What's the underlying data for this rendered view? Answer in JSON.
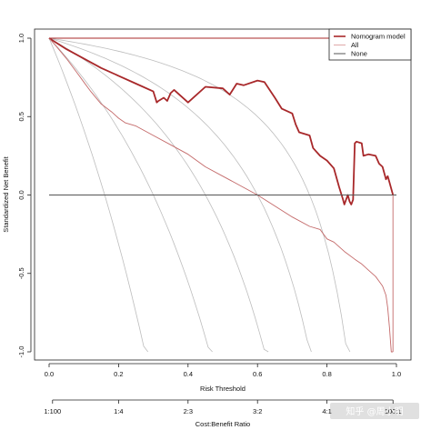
{
  "chart_data": {
    "type": "line",
    "xlabel": "Risk Threshold",
    "ylabel": "Standardized Net Benefit",
    "xlim": [
      0,
      1
    ],
    "ylim": [
      -1,
      1
    ],
    "x_ticks": [
      "0.0",
      "0.2",
      "0.4",
      "0.6",
      "0.8",
      "1.0"
    ],
    "x_tick_values": [
      0,
      0.2,
      0.4,
      0.6,
      0.8,
      1.0
    ],
    "y_ticks": [
      "-1.0",
      "-0.5",
      "0.0",
      "0.5",
      "1.0"
    ],
    "y_tick_values": [
      -1,
      -0.5,
      0,
      0.5,
      1
    ],
    "cost_benefit_label": "Cost:Benefit Ratio",
    "cost_benefit_ticks": [
      "1:100",
      "1:4",
      "2:3",
      "3:2",
      "4:1",
      "100:1"
    ],
    "cost_benefit_tick_values": [
      0.0099,
      0.2,
      0.4,
      0.6,
      0.8,
      0.9901
    ],
    "legend": {
      "position": "top-right",
      "entries": [
        {
          "label": "Nomogram model",
          "color": "#a8282a"
        },
        {
          "label": "All",
          "color": "#e0a8a8"
        },
        {
          "label": "None",
          "color": "#555555"
        }
      ]
    },
    "series": [
      {
        "name": "Nomogram model",
        "color": "#a8282a",
        "x": [
          0,
          0.05,
          0.1,
          0.15,
          0.2,
          0.25,
          0.3,
          0.31,
          0.315,
          0.33,
          0.34,
          0.35,
          0.36,
          0.4,
          0.45,
          0.5,
          0.52,
          0.54,
          0.56,
          0.6,
          0.62,
          0.65,
          0.67,
          0.7,
          0.71,
          0.72,
          0.75,
          0.76,
          0.78,
          0.8,
          0.82,
          0.835,
          0.845,
          0.85,
          0.855,
          0.86,
          0.865,
          0.87,
          0.875,
          0.88,
          0.885,
          0.9,
          0.905,
          0.92,
          0.94,
          0.95,
          0.96,
          0.97,
          0.975,
          0.98,
          0.985,
          0.99
        ],
        "y": [
          1.0,
          0.93,
          0.87,
          0.81,
          0.76,
          0.71,
          0.66,
          0.59,
          0.6,
          0.62,
          0.6,
          0.65,
          0.67,
          0.59,
          0.69,
          0.68,
          0.64,
          0.71,
          0.7,
          0.73,
          0.72,
          0.62,
          0.55,
          0.52,
          0.45,
          0.4,
          0.38,
          0.3,
          0.25,
          0.22,
          0.17,
          0.05,
          -0.02,
          -0.06,
          -0.03,
          0.0,
          -0.04,
          -0.06,
          -0.03,
          0.33,
          0.34,
          0.33,
          0.25,
          0.26,
          0.25,
          0.2,
          0.18,
          0.1,
          0.12,
          0.08,
          0.04,
          0.0
        ]
      },
      {
        "name": "All",
        "color": "#c46a6a",
        "x": [
          0,
          0.02,
          0.05,
          0.08,
          0.1,
          0.12,
          0.15,
          0.18,
          0.2,
          0.22,
          0.25,
          0.3,
          0.35,
          0.4,
          0.45,
          0.5,
          0.55,
          0.6,
          0.65,
          0.7,
          0.75,
          0.78,
          0.8,
          0.82,
          0.85,
          0.88,
          0.9,
          0.92,
          0.94,
          0.95,
          0.96,
          0.97,
          0.975,
          0.98,
          0.985,
          0.99
        ],
        "y": [
          1.0,
          0.95,
          0.87,
          0.78,
          0.72,
          0.66,
          0.58,
          0.53,
          0.49,
          0.46,
          0.44,
          0.38,
          0.32,
          0.26,
          0.18,
          0.12,
          0.06,
          0.0,
          -0.07,
          -0.14,
          -0.2,
          -0.22,
          -0.28,
          -0.3,
          -0.36,
          -0.41,
          -0.44,
          -0.48,
          -0.52,
          -0.55,
          -0.58,
          -0.64,
          -0.72,
          -0.85,
          -1.0,
          -1.0
        ]
      },
      {
        "name": "None",
        "color": "#555555",
        "x": [
          0,
          1
        ],
        "y": [
          0,
          0
        ]
      }
    ]
  },
  "watermark": "知乎 @周小明"
}
